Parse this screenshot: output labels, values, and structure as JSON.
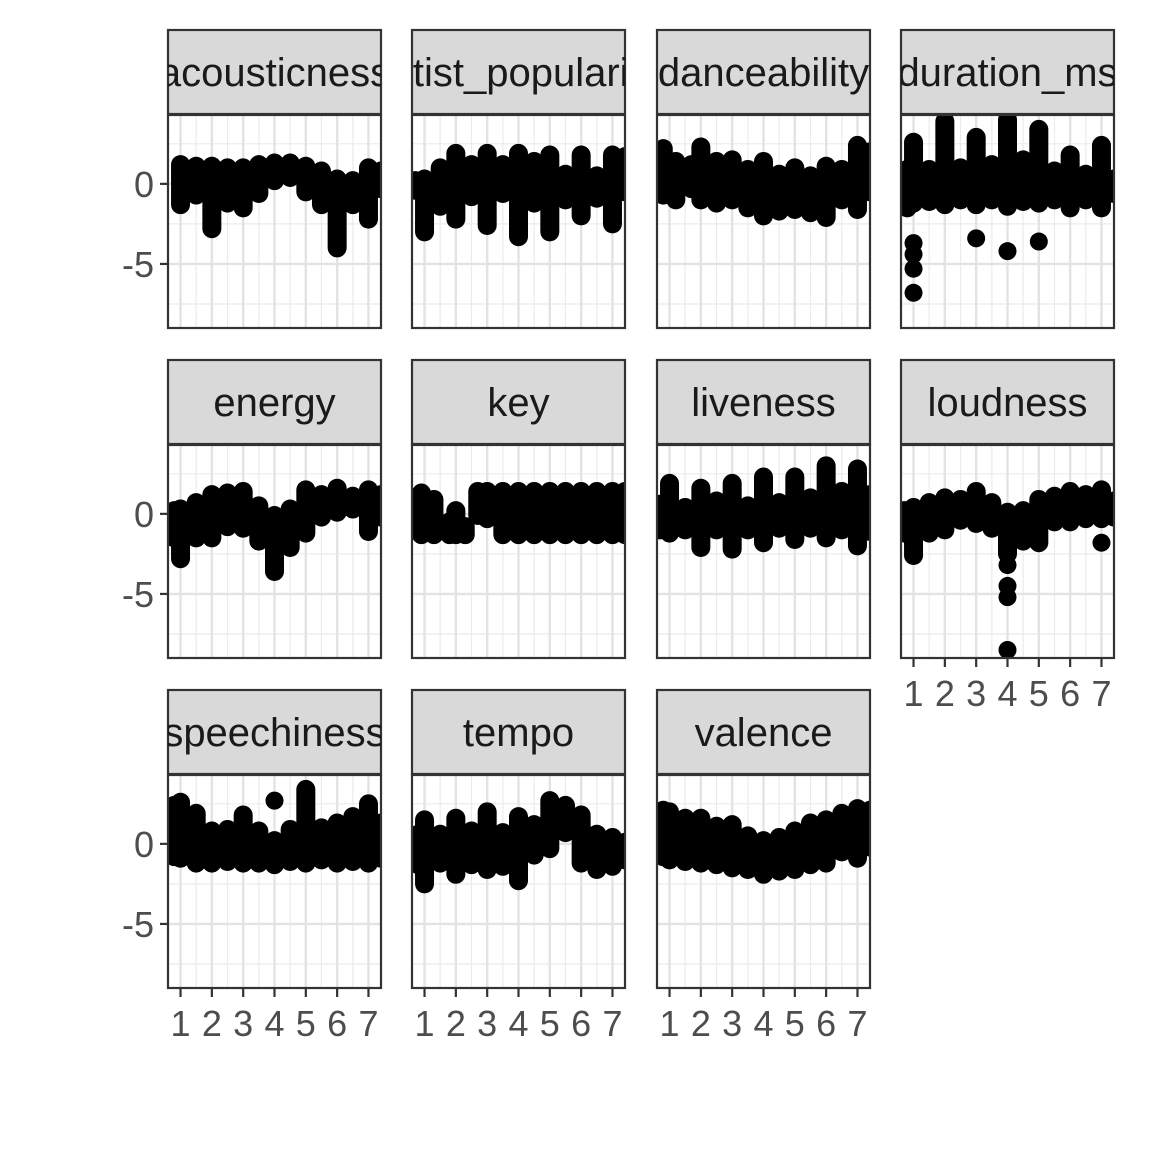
{
  "chart_data": {
    "type": "scatter",
    "facet_layout": {
      "columns": 4,
      "free_y": false
    },
    "y_axis": {
      "ylim": [
        -9.0,
        4.3
      ],
      "ticks": [
        0,
        -5
      ],
      "tick_labels": [
        "0",
        "-5"
      ]
    },
    "x_axis": {
      "xlim": [
        0.6,
        7.4
      ],
      "ticks": [
        1,
        2,
        3,
        4,
        5,
        6,
        7
      ],
      "tick_labels": [
        "1",
        "2",
        "3",
        "4",
        "5",
        "6",
        "7"
      ]
    },
    "grid": true,
    "theme": "bw",
    "point_color": "#000000",
    "strip_fill": "#d9d9d9",
    "panels": [
      {
        "name": "acousticness",
        "series": [
          {
            "x": 1,
            "min": -1.3,
            "max": 1.2
          },
          {
            "x": 1.5,
            "min": -0.7,
            "max": 1.1
          },
          {
            "x": 2,
            "min": -2.8,
            "max": 1.1
          },
          {
            "x": 2.5,
            "min": -1.2,
            "max": 1.0
          },
          {
            "x": 3,
            "min": -1.5,
            "max": 1.0
          },
          {
            "x": 3.5,
            "min": -0.6,
            "max": 1.2
          },
          {
            "x": 4,
            "min": 0.2,
            "max": 1.3
          },
          {
            "x": 4.5,
            "min": 0.4,
            "max": 1.3
          },
          {
            "x": 5,
            "min": -0.5,
            "max": 1.1
          },
          {
            "x": 5.5,
            "min": -1.3,
            "max": 0.8
          },
          {
            "x": 6,
            "min": -4.0,
            "max": 0.3
          },
          {
            "x": 6.5,
            "min": -1.3,
            "max": 0.2
          },
          {
            "x": 7,
            "min": -2.2,
            "max": 1.0
          },
          {
            "x": 7.4,
            "min": -0.3,
            "max": 0.8
          }
        ]
      },
      {
        "name": "artist_popularity",
        "series": [
          {
            "x": 0.7,
            "min": -0.4,
            "max": 0.2
          },
          {
            "x": 1,
            "min": -3.0,
            "max": 0.3
          },
          {
            "x": 1.5,
            "min": -1.4,
            "max": 1.0
          },
          {
            "x": 2,
            "min": -2.2,
            "max": 1.9
          },
          {
            "x": 2.5,
            "min": -0.8,
            "max": 1.2
          },
          {
            "x": 3,
            "min": -2.6,
            "max": 1.9
          },
          {
            "x": 3.5,
            "min": -0.6,
            "max": 1.2
          },
          {
            "x": 4,
            "min": -3.3,
            "max": 1.9
          },
          {
            "x": 4.5,
            "min": -1.2,
            "max": 1.4
          },
          {
            "x": 5,
            "min": -3.0,
            "max": 1.8
          },
          {
            "x": 5.5,
            "min": -1.0,
            "max": 0.6
          },
          {
            "x": 6,
            "min": -2.0,
            "max": 1.8
          },
          {
            "x": 6.5,
            "min": -0.9,
            "max": 0.5
          },
          {
            "x": 7,
            "min": -2.5,
            "max": 1.8
          },
          {
            "x": 7.4,
            "min": -0.5,
            "max": 1.7
          }
        ]
      },
      {
        "name": "danceability",
        "series": [
          {
            "x": 0.8,
            "min": -0.7,
            "max": 2.2
          },
          {
            "x": 1.2,
            "min": -1.0,
            "max": 1.4
          },
          {
            "x": 1.7,
            "min": -0.3,
            "max": 1.2
          },
          {
            "x": 2,
            "min": -1.0,
            "max": 2.3
          },
          {
            "x": 2.5,
            "min": -1.2,
            "max": 1.4
          },
          {
            "x": 3,
            "min": -1.0,
            "max": 1.5
          },
          {
            "x": 3.5,
            "min": -1.5,
            "max": 0.9
          },
          {
            "x": 4,
            "min": -2.0,
            "max": 1.4
          },
          {
            "x": 4.5,
            "min": -1.7,
            "max": 0.6
          },
          {
            "x": 5,
            "min": -1.6,
            "max": 1.0
          },
          {
            "x": 5.5,
            "min": -1.8,
            "max": 0.5
          },
          {
            "x": 6,
            "min": -2.1,
            "max": 1.1
          },
          {
            "x": 6.5,
            "min": -1.0,
            "max": 0.9
          },
          {
            "x": 7,
            "min": -1.6,
            "max": 2.4
          },
          {
            "x": 7.4,
            "min": -0.5,
            "max": 2.0
          }
        ]
      },
      {
        "name": "duration_ms",
        "series": [
          {
            "x": 0.8,
            "min": -1.5,
            "max": 0.9
          },
          {
            "x": 1,
            "min": -1.2,
            "max": 2.6
          },
          {
            "x": 1.5,
            "min": -1.1,
            "max": 0.9
          },
          {
            "x": 2,
            "min": -1.3,
            "max": 3.9
          },
          {
            "x": 2.5,
            "min": -1.0,
            "max": 1.0
          },
          {
            "x": 3,
            "min": -1.3,
            "max": 2.9
          },
          {
            "x": 3.5,
            "min": -1.0,
            "max": 1.2
          },
          {
            "x": 4,
            "min": -1.4,
            "max": 4.0
          },
          {
            "x": 4.5,
            "min": -1.1,
            "max": 1.5
          },
          {
            "x": 5,
            "min": -1.2,
            "max": 3.4
          },
          {
            "x": 5.5,
            "min": -1.0,
            "max": 0.8
          },
          {
            "x": 6,
            "min": -1.5,
            "max": 1.8
          },
          {
            "x": 6.5,
            "min": -1.0,
            "max": 0.6
          },
          {
            "x": 7,
            "min": -1.5,
            "max": 2.4
          },
          {
            "x": 7.4,
            "min": -0.6,
            "max": 0.3
          }
        ],
        "points": [
          [
            1,
            -3.7
          ],
          [
            1,
            -4.4
          ],
          [
            1,
            -5.3
          ],
          [
            1,
            -6.8
          ],
          [
            3,
            -3.4
          ],
          [
            4,
            -4.2
          ],
          [
            5,
            -3.6
          ]
        ]
      },
      {
        "name": "energy",
        "series": [
          {
            "x": 0.8,
            "min": -1.5,
            "max": 0.2
          },
          {
            "x": 1,
            "min": -2.8,
            "max": 0.3
          },
          {
            "x": 1.5,
            "min": -1.5,
            "max": 0.7
          },
          {
            "x": 2,
            "min": -1.5,
            "max": 1.2
          },
          {
            "x": 2.5,
            "min": -0.8,
            "max": 1.3
          },
          {
            "x": 3,
            "min": -0.9,
            "max": 1.4
          },
          {
            "x": 3.5,
            "min": -1.7,
            "max": 0.5
          },
          {
            "x": 4,
            "min": -3.6,
            "max": -0.1
          },
          {
            "x": 4.5,
            "min": -2.1,
            "max": 0.3
          },
          {
            "x": 5,
            "min": -1.2,
            "max": 1.5
          },
          {
            "x": 5.5,
            "min": -0.2,
            "max": 1.2
          },
          {
            "x": 6,
            "min": 0.1,
            "max": 1.6
          },
          {
            "x": 6.5,
            "min": 0.3,
            "max": 1.1
          },
          {
            "x": 7,
            "min": -1.1,
            "max": 1.5
          },
          {
            "x": 7.4,
            "min": -0.2,
            "max": 1.2
          }
        ]
      },
      {
        "name": "key",
        "series": [
          {
            "x": 0.9,
            "min": -1.3,
            "max": 1.3
          },
          {
            "x": 1.3,
            "min": -1.3,
            "max": 0.9
          },
          {
            "x": 1.8,
            "min": -1.3,
            "max": -0.5
          },
          {
            "x": 2,
            "min": -1.3,
            "max": 0.2
          },
          {
            "x": 2.3,
            "min": -1.3,
            "max": -0.8
          },
          {
            "x": 2.7,
            "min": -0.1,
            "max": 1.4
          },
          {
            "x": 3,
            "min": -0.3,
            "max": 1.4
          },
          {
            "x": 3.5,
            "min": -1.3,
            "max": 1.4
          },
          {
            "x": 4,
            "min": -1.3,
            "max": 1.4
          },
          {
            "x": 4.5,
            "min": -1.3,
            "max": 1.4
          },
          {
            "x": 5,
            "min": -1.3,
            "max": 1.4
          },
          {
            "x": 5.5,
            "min": -1.3,
            "max": 1.4
          },
          {
            "x": 6,
            "min": -1.3,
            "max": 1.4
          },
          {
            "x": 6.5,
            "min": -1.3,
            "max": 1.4
          },
          {
            "x": 7,
            "min": -1.3,
            "max": 1.4
          },
          {
            "x": 7.4,
            "min": -1.3,
            "max": 1.4
          }
        ]
      },
      {
        "name": "liveness",
        "series": [
          {
            "x": 0.7,
            "min": -1.0,
            "max": 0.6
          },
          {
            "x": 1,
            "min": -1.2,
            "max": 1.9
          },
          {
            "x": 1.5,
            "min": -1.0,
            "max": 0.4
          },
          {
            "x": 2,
            "min": -2.1,
            "max": 1.6
          },
          {
            "x": 2.5,
            "min": -1.0,
            "max": 0.8
          },
          {
            "x": 3,
            "min": -2.2,
            "max": 1.9
          },
          {
            "x": 3.5,
            "min": -1.0,
            "max": 0.5
          },
          {
            "x": 4,
            "min": -1.8,
            "max": 2.3
          },
          {
            "x": 4.5,
            "min": -0.9,
            "max": 0.7
          },
          {
            "x": 5,
            "min": -1.6,
            "max": 2.3
          },
          {
            "x": 5.5,
            "min": -0.9,
            "max": 1.0
          },
          {
            "x": 6,
            "min": -1.5,
            "max": 3.0
          },
          {
            "x": 6.5,
            "min": -1.0,
            "max": 1.4
          },
          {
            "x": 7,
            "min": -2.0,
            "max": 2.8
          },
          {
            "x": 7.4,
            "min": -1.1,
            "max": 1.2
          }
        ]
      },
      {
        "name": "loudness",
        "series": [
          {
            "x": 0.7,
            "min": -1.2,
            "max": 0.2
          },
          {
            "x": 1,
            "min": -2.6,
            "max": 0.4
          },
          {
            "x": 1.5,
            "min": -1.2,
            "max": 0.7
          },
          {
            "x": 2,
            "min": -1.0,
            "max": 1.0
          },
          {
            "x": 2.5,
            "min": -0.4,
            "max": 0.9
          },
          {
            "x": 3,
            "min": -0.6,
            "max": 1.4
          },
          {
            "x": 3.5,
            "min": -0.9,
            "max": 0.7
          },
          {
            "x": 4,
            "min": -2.5,
            "max": 0.1
          },
          {
            "x": 4.5,
            "min": -1.7,
            "max": 0.2
          },
          {
            "x": 5,
            "min": -1.8,
            "max": 0.9
          },
          {
            "x": 5.5,
            "min": -0.5,
            "max": 1.1
          },
          {
            "x": 6,
            "min": -0.5,
            "max": 1.4
          },
          {
            "x": 6.5,
            "min": -0.3,
            "max": 1.2
          },
          {
            "x": 7,
            "min": -0.3,
            "max": 1.5
          },
          {
            "x": 7.4,
            "min": -0.2,
            "max": 0.8
          }
        ],
        "points": [
          [
            4,
            -3.2
          ],
          [
            4,
            -4.5
          ],
          [
            4,
            -5.2
          ],
          [
            4,
            -8.5
          ],
          [
            7,
            -1.8
          ]
        ]
      },
      {
        "name": "speechiness",
        "series": [
          {
            "x": 0.8,
            "min": -0.8,
            "max": 2.4
          },
          {
            "x": 1,
            "min": -0.9,
            "max": 2.6
          },
          {
            "x": 1.5,
            "min": -1.2,
            "max": 1.9
          },
          {
            "x": 2,
            "min": -1.2,
            "max": 0.8
          },
          {
            "x": 2.5,
            "min": -1.1,
            "max": 0.9
          },
          {
            "x": 3,
            "min": -1.2,
            "max": 1.8
          },
          {
            "x": 3.5,
            "min": -1.2,
            "max": 0.8
          },
          {
            "x": 4,
            "min": -1.3,
            "max": 0.2
          },
          {
            "x": 4.5,
            "min": -1.1,
            "max": 0.9
          },
          {
            "x": 5,
            "min": -1.2,
            "max": 3.4
          },
          {
            "x": 5.5,
            "min": -1.0,
            "max": 1.0
          },
          {
            "x": 6,
            "min": -1.2,
            "max": 1.3
          },
          {
            "x": 6.5,
            "min": -1.1,
            "max": 1.7
          },
          {
            "x": 7,
            "min": -1.2,
            "max": 2.5
          },
          {
            "x": 7.4,
            "min": -0.9,
            "max": 1.3
          }
        ],
        "points": [
          [
            4,
            2.7
          ]
        ]
      },
      {
        "name": "tempo",
        "series": [
          {
            "x": 0.8,
            "min": -1.3,
            "max": 0.6
          },
          {
            "x": 1,
            "min": -2.5,
            "max": 1.5
          },
          {
            "x": 1.5,
            "min": -1.2,
            "max": 0.6
          },
          {
            "x": 2,
            "min": -1.9,
            "max": 1.6
          },
          {
            "x": 2.5,
            "min": -1.3,
            "max": 0.8
          },
          {
            "x": 3,
            "min": -1.6,
            "max": 2.0
          },
          {
            "x": 3.5,
            "min": -1.4,
            "max": 0.7
          },
          {
            "x": 4,
            "min": -2.3,
            "max": 1.7
          },
          {
            "x": 4.5,
            "min": -0.7,
            "max": 1.2
          },
          {
            "x": 5,
            "min": -0.3,
            "max": 2.7
          },
          {
            "x": 5.5,
            "min": 0.7,
            "max": 2.4
          },
          {
            "x": 6,
            "min": -1.2,
            "max": 1.8
          },
          {
            "x": 6.5,
            "min": -1.6,
            "max": 0.6
          },
          {
            "x": 7,
            "min": -1.4,
            "max": 0.4
          },
          {
            "x": 7.4,
            "min": -1.0,
            "max": 0.1
          }
        ]
      },
      {
        "name": "valence",
        "series": [
          {
            "x": 0.8,
            "min": -0.8,
            "max": 2.1
          },
          {
            "x": 1,
            "min": -1.0,
            "max": 2.0
          },
          {
            "x": 1.5,
            "min": -1.1,
            "max": 1.6
          },
          {
            "x": 2,
            "min": -1.2,
            "max": 1.6
          },
          {
            "x": 2.5,
            "min": -1.3,
            "max": 1.1
          },
          {
            "x": 3,
            "min": -1.5,
            "max": 1.2
          },
          {
            "x": 3.5,
            "min": -1.6,
            "max": 0.5
          },
          {
            "x": 4,
            "min": -1.9,
            "max": 0.2
          },
          {
            "x": 4.5,
            "min": -1.7,
            "max": 0.4
          },
          {
            "x": 5,
            "min": -1.6,
            "max": 0.8
          },
          {
            "x": 5.5,
            "min": -1.3,
            "max": 1.3
          },
          {
            "x": 6,
            "min": -1.2,
            "max": 1.5
          },
          {
            "x": 6.5,
            "min": -0.5,
            "max": 1.9
          },
          {
            "x": 7,
            "min": -0.9,
            "max": 2.2
          },
          {
            "x": 7.4,
            "min": -0.2,
            "max": 2.1
          }
        ]
      }
    ]
  }
}
